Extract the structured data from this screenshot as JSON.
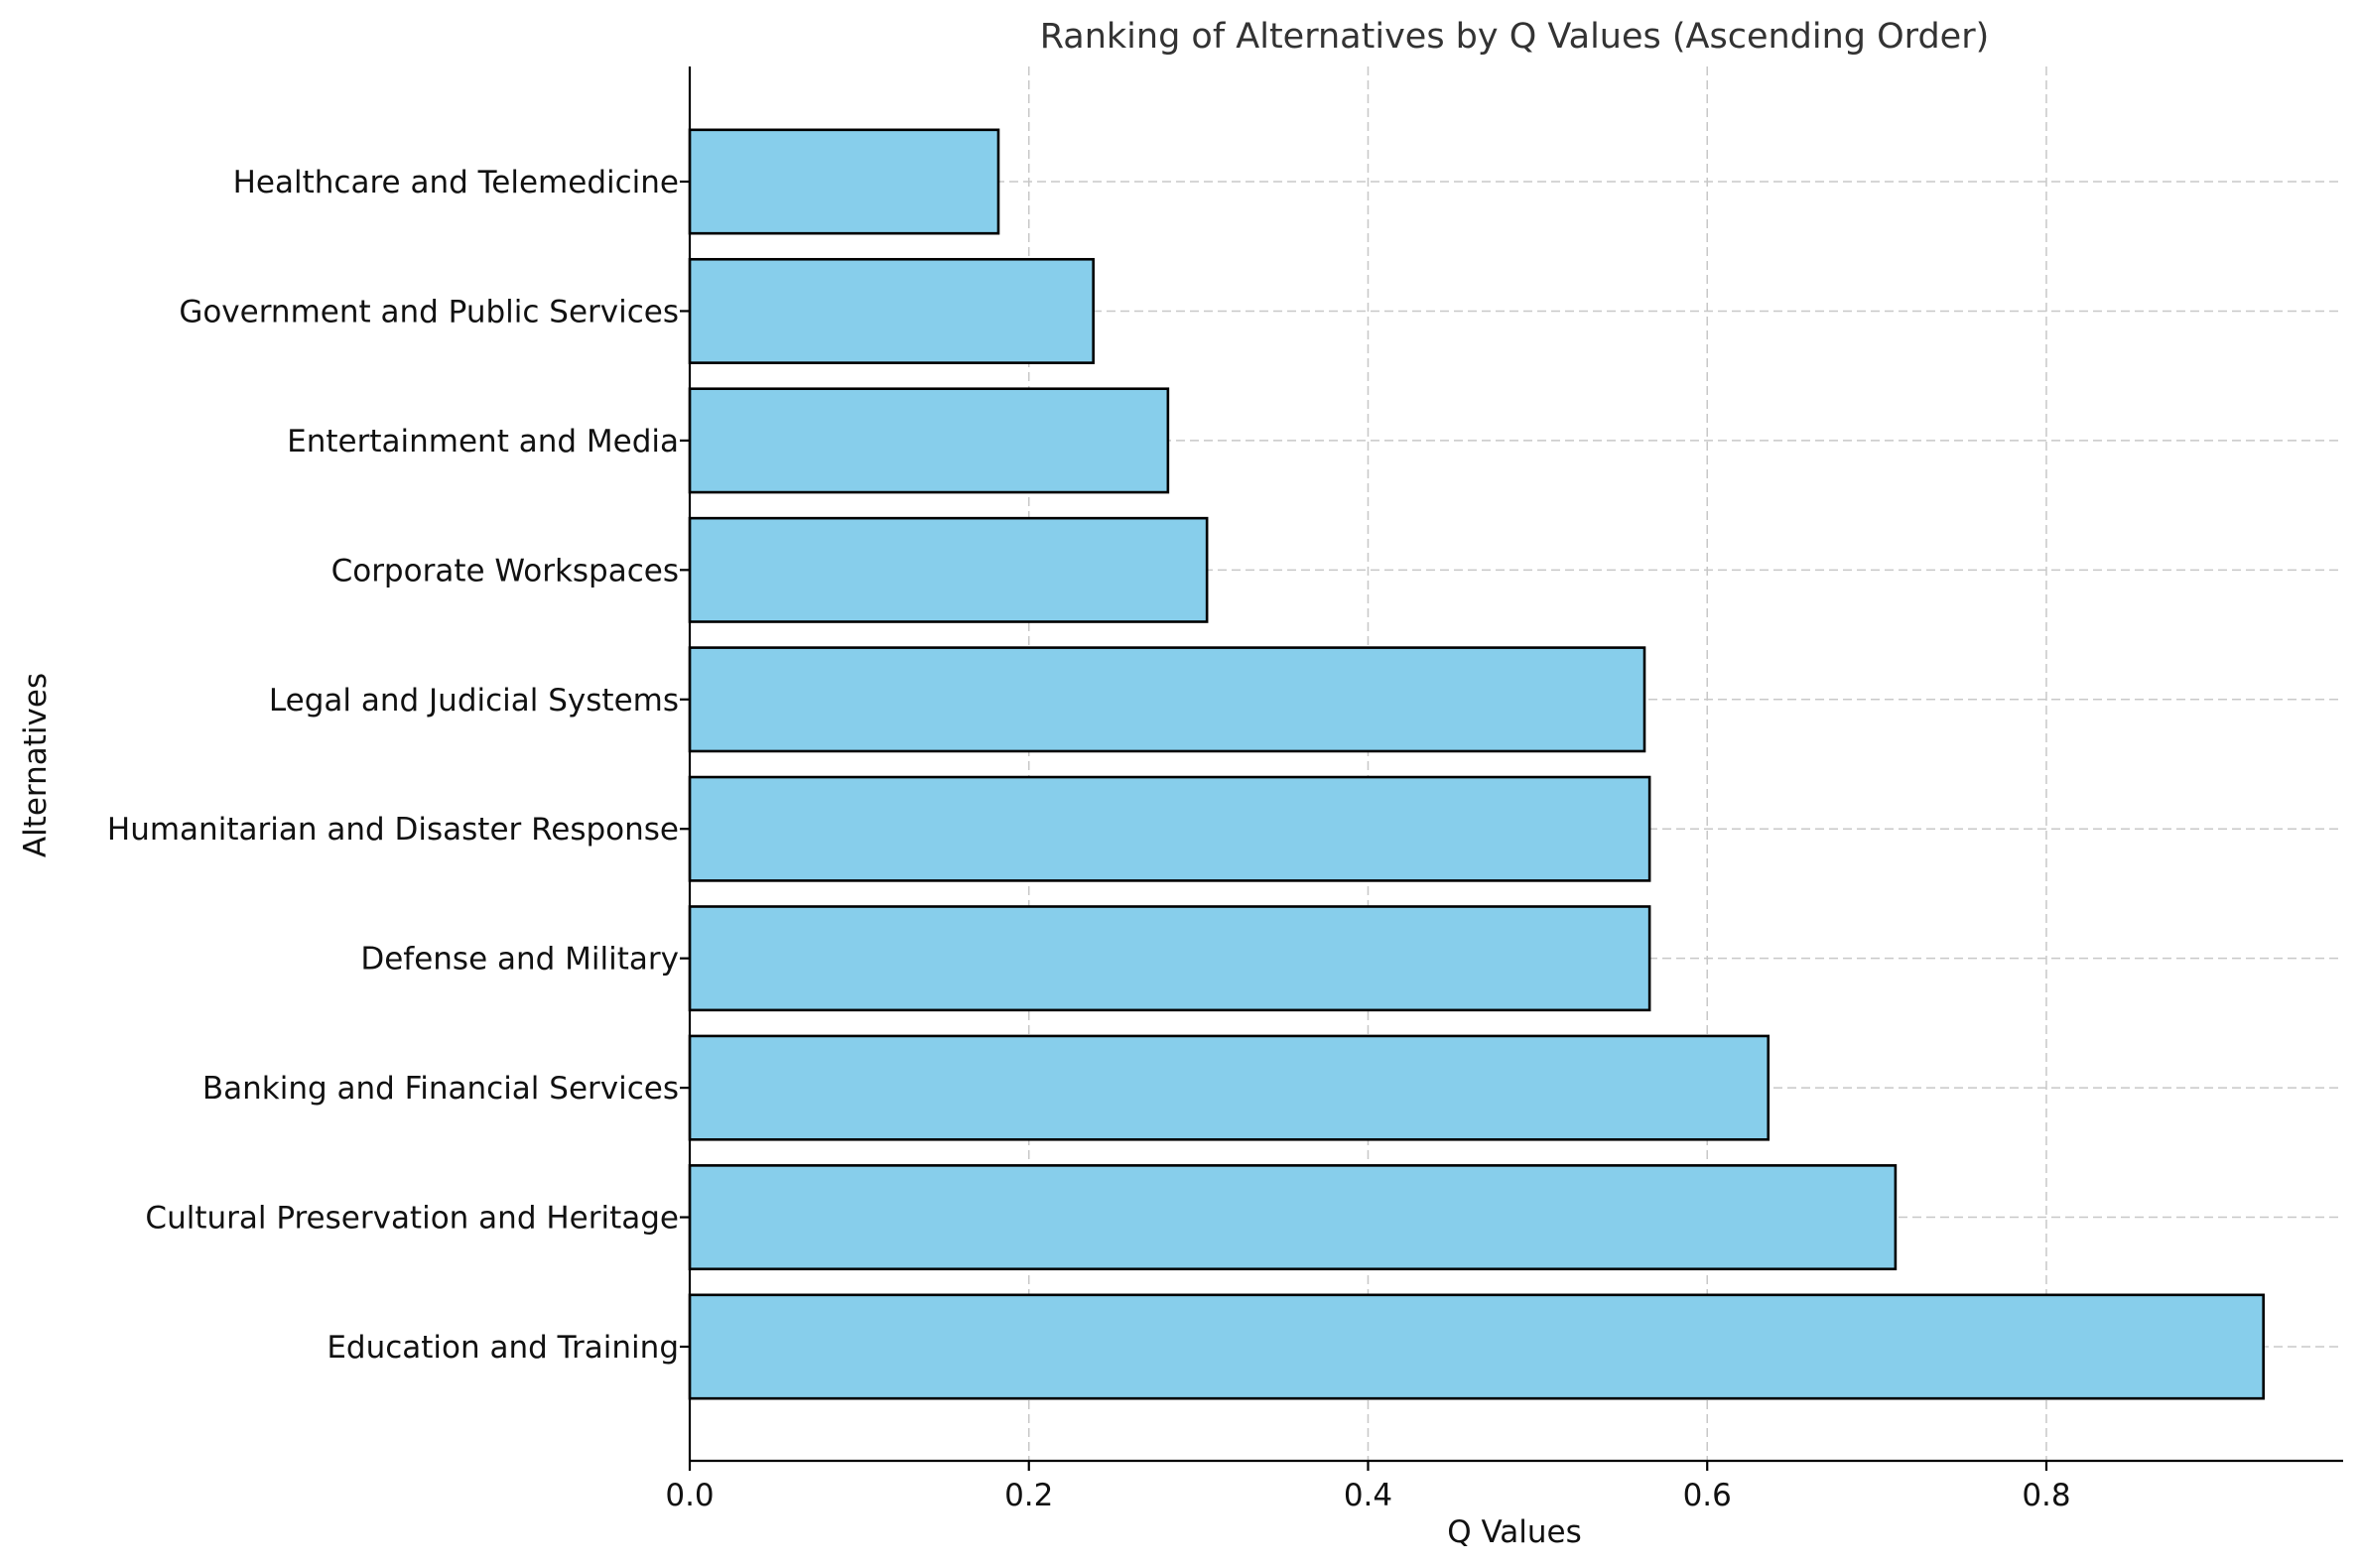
{
  "chart_data": {
    "type": "bar",
    "orientation": "horizontal",
    "title": "Ranking of Alternatives by Q Values (Ascending Order)",
    "xlabel": "Q Values",
    "ylabel": "Alternatives",
    "categories": [
      "Education and Training",
      "Cultural Preservation and Heritage",
      "Banking and Financial Services",
      "Defense and Military",
      "Humanitarian and Disaster Response",
      "Legal and Judicial Systems",
      "Corporate Workspaces",
      "Entertainment and Media",
      "Government and Public Services",
      "Healthcare and Telemedicine"
    ],
    "values": [
      0.928,
      0.711,
      0.636,
      0.566,
      0.566,
      0.563,
      0.305,
      0.282,
      0.238,
      0.182
    ],
    "xlim": [
      0,
      0.975
    ],
    "xticks": [
      0.0,
      0.2,
      0.4,
      0.6,
      0.8
    ],
    "xtick_labels": [
      "0.0",
      "0.2",
      "0.4",
      "0.6",
      "0.8"
    ],
    "grid": true,
    "bar_color": "#87CEEB",
    "edge_color": "#000000",
    "grid_color": "#c8c8c8"
  }
}
